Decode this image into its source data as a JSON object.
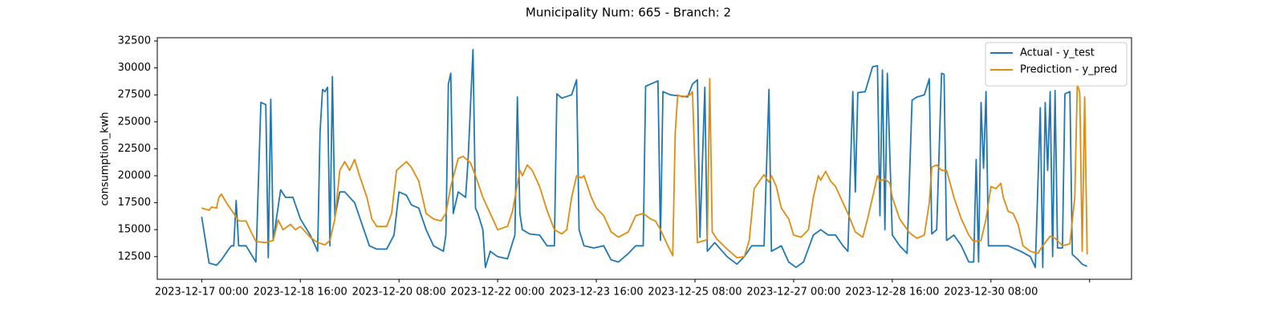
{
  "chart_data": {
    "type": "line",
    "title": "Municipality Num: 665 - Branch: 2",
    "ylabel": "consumption_kwh",
    "legend": "upper right",
    "grid": false,
    "xlim": [
      "2023-12-16 06:00",
      "2024-01-01 17:00"
    ],
    "xticks": [
      "2023-12-17 00:00",
      "2023-12-18 16:00",
      "2023-12-20 08:00",
      "2023-12-22 00:00",
      "2023-12-23 16:00",
      "2023-12-25 08:00",
      "2023-12-27 00:00",
      "2023-12-28 16:00",
      "2023-12-30 08:00",
      {
        "value": "2024-01-01 00:00",
        "label": null
      }
    ],
    "ylim": [
      10400,
      32800
    ],
    "yticks": [
      12500,
      15000,
      17500,
      20000,
      22500,
      25000,
      27500,
      30000,
      32500
    ],
    "series": [
      {
        "name": "Actual - y_test",
        "color": "#1f77b4",
        "x": [
          "2023-12-17 00:00",
          "2023-12-17 03:00",
          "2023-12-17 06:00",
          "2023-12-17 08:00",
          "2023-12-17 11:00",
          "2023-12-17 12:00",
          "2023-12-17 13:00",
          "2023-12-17 14:00",
          "2023-12-17 15:00",
          "2023-12-17 18:00",
          "2023-12-17 22:00",
          "2023-12-18 00:00",
          "2023-12-18 02:00",
          "2023-12-18 03:00",
          "2023-12-18 04:00",
          "2023-12-18 05:00",
          "2023-12-18 08:00",
          "2023-12-18 10:00",
          "2023-12-18 13:00",
          "2023-12-18 16:00",
          "2023-12-18 20:00",
          "2023-12-18 23:00",
          "2023-12-19 00:00",
          "2023-12-19 01:00",
          "2023-12-19 02:00",
          "2023-12-19 03:00",
          "2023-12-19 04:00",
          "2023-12-19 05:00",
          "2023-12-19 06:00",
          "2023-12-19 08:00",
          "2023-12-19 10:00",
          "2023-12-19 14:00",
          "2023-12-19 17:00",
          "2023-12-19 20:00",
          "2023-12-19 23:00",
          "2023-12-20 03:00",
          "2023-12-20 06:00",
          "2023-12-20 08:00",
          "2023-12-20 11:00",
          "2023-12-20 13:00",
          "2023-12-20 16:00",
          "2023-12-20 19:00",
          "2023-12-20 22:00",
          "2023-12-21 02:00",
          "2023-12-21 03:00",
          "2023-12-21 04:00",
          "2023-12-21 05:00",
          "2023-12-21 06:00",
          "2023-12-21 08:00",
          "2023-12-21 11:00",
          "2023-12-21 12:00",
          "2023-12-21 14:00",
          "2023-12-21 15:00",
          "2023-12-21 16:00",
          "2023-12-21 18:00",
          "2023-12-21 19:00",
          "2023-12-21 21:00",
          "2023-12-22 00:00",
          "2023-12-22 04:00",
          "2023-12-22 07:00",
          "2023-12-22 08:00",
          "2023-12-22 09:00",
          "2023-12-22 10:00",
          "2023-12-22 13:00",
          "2023-12-22 17:00",
          "2023-12-22 20:00",
          "2023-12-22 23:00",
          "2023-12-23 00:00",
          "2023-12-23 02:00",
          "2023-12-23 06:00",
          "2023-12-23 08:00",
          "2023-12-23 09:00",
          "2023-12-23 11:00",
          "2023-12-23 15:00",
          "2023-12-23 19:00",
          "2023-12-23 22:00",
          "2023-12-24 01:00",
          "2023-12-24 05:00",
          "2023-12-24 08:00",
          "2023-12-24 11:00",
          "2023-12-24 12:00",
          "2023-12-24 14:00",
          "2023-12-24 17:00",
          "2023-12-24 18:00",
          "2023-12-24 19:00",
          "2023-12-24 22:00",
          "2023-12-25 02:00",
          "2023-12-25 05:00",
          "2023-12-25 07:00",
          "2023-12-25 09:00",
          "2023-12-25 10:00",
          "2023-12-25 12:00",
          "2023-12-25 13:00",
          "2023-12-25 16:00",
          "2023-12-25 21:00",
          "2023-12-26 01:00",
          "2023-12-26 04:00",
          "2023-12-26 07:00",
          "2023-12-26 12:00",
          "2023-12-26 14:00",
          "2023-12-26 15:00",
          "2023-12-26 19:00",
          "2023-12-26 22:00",
          "2023-12-27 01:00",
          "2023-12-27 04:00",
          "2023-12-27 08:00",
          "2023-12-27 11:00",
          "2023-12-27 14:00",
          "2023-12-27 17:00",
          "2023-12-27 20:00",
          "2023-12-27 22:00",
          "2023-12-28 00:00",
          "2023-12-28 01:00",
          "2023-12-28 02:00",
          "2023-12-28 05:00",
          "2023-12-28 08:00",
          "2023-12-28 10:00",
          "2023-12-28 11:00",
          "2023-12-28 12:00",
          "2023-12-28 13:00",
          "2023-12-28 14:00",
          "2023-12-28 16:00",
          "2023-12-28 19:00",
          "2023-12-28 22:00",
          "2023-12-29 00:00",
          "2023-12-29 02:00",
          "2023-12-29 05:00",
          "2023-12-29 07:00",
          "2023-12-29 08:00",
          "2023-12-29 10:00",
          "2023-12-29 12:00",
          "2023-12-29 13:00",
          "2023-12-29 14:00",
          "2023-12-29 17:00",
          "2023-12-29 20:00",
          "2023-12-29 23:00",
          "2023-12-30 01:00",
          "2023-12-30 02:00",
          "2023-12-30 03:00",
          "2023-12-30 04:00",
          "2023-12-30 05:00",
          "2023-12-30 06:00",
          "2023-12-30 07:00",
          "2023-12-30 12:00",
          "2023-12-30 15:00",
          "2023-12-30 20:00",
          "2023-12-31 00:00",
          "2023-12-31 02:00",
          "2023-12-31 04:00",
          "2023-12-31 05:00",
          "2023-12-31 06:00",
          "2023-12-31 07:00",
          "2023-12-31 08:00",
          "2023-12-31 09:00",
          "2023-12-31 10:00",
          "2023-12-31 11:00",
          "2023-12-31 13:00",
          "2023-12-31 14:00",
          "2023-12-31 16:00",
          "2023-12-31 17:00",
          "2023-12-31 19:00",
          "2023-12-31 21:00",
          "2023-12-31 23:00"
        ],
        "values": [
          16200,
          11900,
          11700,
          12200,
          13200,
          13500,
          13500,
          17700,
          13500,
          13500,
          12000,
          26800,
          26600,
          12400,
          27100,
          14000,
          18700,
          18000,
          18000,
          16000,
          14500,
          13000,
          24000,
          28000,
          27800,
          28200,
          13500,
          29200,
          16200,
          18500,
          18500,
          17500,
          15500,
          13500,
          13200,
          13200,
          14500,
          18500,
          18200,
          17300,
          17000,
          15000,
          13500,
          13000,
          14500,
          28500,
          29500,
          16500,
          18500,
          18000,
          21500,
          31700,
          17000,
          16500,
          15000,
          11500,
          13000,
          12500,
          12300,
          14500,
          27300,
          16500,
          15000,
          14600,
          14500,
          13500,
          13500,
          27600,
          27200,
          27500,
          28900,
          15000,
          13500,
          13300,
          13500,
          12200,
          12000,
          12800,
          13500,
          13500,
          28300,
          28500,
          28800,
          14000,
          27800,
          27500,
          27400,
          27300,
          28500,
          28900,
          14300,
          28200,
          13000,
          13800,
          12500,
          11800,
          12500,
          13500,
          13500,
          28000,
          13000,
          13500,
          12000,
          11500,
          12000,
          14500,
          15000,
          14500,
          14500,
          13500,
          13000,
          27800,
          18500,
          27700,
          27800,
          30100,
          30200,
          16300,
          29800,
          15000,
          29500,
          14500,
          13500,
          12800,
          27000,
          27300,
          27500,
          29000,
          14600,
          15000,
          29500,
          29400,
          14000,
          14500,
          13500,
          12000,
          12000,
          21500,
          12000,
          26800,
          20700,
          27800,
          13500,
          13500,
          13500,
          13000,
          12500,
          11500,
          26300,
          11500,
          26800,
          20500,
          27800,
          12500,
          27900,
          13300,
          13300,
          27600,
          27800,
          12700,
          12300,
          11800,
          11600
        ]
      },
      {
        "name": "Prediction - y_pred",
        "color": "#e08c10",
        "x": [
          "2023-12-17 00:00",
          "2023-12-17 03:00",
          "2023-12-17 04:00",
          "2023-12-17 06:00",
          "2023-12-17 07:00",
          "2023-12-17 08:00",
          "2023-12-17 10:00",
          "2023-12-17 13:00",
          "2023-12-17 15:00",
          "2023-12-17 18:00",
          "2023-12-17 20:00",
          "2023-12-17 22:00",
          "2023-12-18 02:00",
          "2023-12-18 05:00",
          "2023-12-18 07:00",
          "2023-12-18 09:00",
          "2023-12-18 12:00",
          "2023-12-18 14:00",
          "2023-12-18 16:00",
          "2023-12-18 20:00",
          "2023-12-18 23:00",
          "2023-12-19 02:00",
          "2023-12-19 04:00",
          "2023-12-19 06:00",
          "2023-12-19 08:00",
          "2023-12-19 10:00",
          "2023-12-19 12:00",
          "2023-12-19 14:00",
          "2023-12-19 16:00",
          "2023-12-19 19:00",
          "2023-12-19 21:00",
          "2023-12-19 23:00",
          "2023-12-20 03:00",
          "2023-12-20 05:00",
          "2023-12-20 07:00",
          "2023-12-20 11:00",
          "2023-12-20 13:00",
          "2023-12-20 16:00",
          "2023-12-20 19:00",
          "2023-12-20 22:00",
          "2023-12-21 01:00",
          "2023-12-21 03:00",
          "2023-12-21 05:00",
          "2023-12-21 08:00",
          "2023-12-21 10:00",
          "2023-12-21 13:00",
          "2023-12-21 15:00",
          "2023-12-21 18:00",
          "2023-12-21 21:00",
          "2023-12-22 00:00",
          "2023-12-22 04:00",
          "2023-12-22 06:00",
          "2023-12-22 09:00",
          "2023-12-22 10:00",
          "2023-12-22 12:00",
          "2023-12-22 14:00",
          "2023-12-22 17:00",
          "2023-12-22 20:00",
          "2023-12-22 23:00",
          "2023-12-23 02:00",
          "2023-12-23 04:00",
          "2023-12-23 06:00",
          "2023-12-23 08:00",
          "2023-12-23 10:00",
          "2023-12-23 11:00",
          "2023-12-23 14:00",
          "2023-12-23 16:00",
          "2023-12-23 19:00",
          "2023-12-23 22:00",
          "2023-12-24 01:00",
          "2023-12-24 05:00",
          "2023-12-24 08:00",
          "2023-12-24 11:00",
          "2023-12-24 14:00",
          "2023-12-24 16:00",
          "2023-12-24 18:00",
          "2023-12-24 21:00",
          "2023-12-24 23:00",
          "2023-12-25 00:00",
          "2023-12-25 01:00",
          "2023-12-25 03:00",
          "2023-12-25 06:00",
          "2023-12-25 07:00",
          "2023-12-25 09:00",
          "2023-12-25 12:00",
          "2023-12-25 13:00",
          "2023-12-25 14:00",
          "2023-12-25 15:00",
          "2023-12-25 17:00",
          "2023-12-25 21:00",
          "2023-12-26 01:00",
          "2023-12-26 04:00",
          "2023-12-26 06:00",
          "2023-12-26 08:00",
          "2023-12-26 11:00",
          "2023-12-26 12:00",
          "2023-12-26 14:00",
          "2023-12-26 15:00",
          "2023-12-26 17:00",
          "2023-12-26 19:00",
          "2023-12-26 22:00",
          "2023-12-27 00:00",
          "2023-12-27 03:00",
          "2023-12-27 06:00",
          "2023-12-27 08:00",
          "2023-12-27 10:00",
          "2023-12-27 11:00",
          "2023-12-27 13:00",
          "2023-12-27 15:00",
          "2023-12-27 17:00",
          "2023-12-27 20:00",
          "2023-12-27 22:00",
          "2023-12-28 01:00",
          "2023-12-28 04:00",
          "2023-12-28 06:00",
          "2023-12-28 08:00",
          "2023-12-28 10:00",
          "2023-12-28 11:00",
          "2023-12-28 13:00",
          "2023-12-28 15:00",
          "2023-12-28 16:00",
          "2023-12-28 19:00",
          "2023-12-28 23:00",
          "2023-12-29 02:00",
          "2023-12-29 05:00",
          "2023-12-29 07:00",
          "2023-12-29 08:00",
          "2023-12-29 10:00",
          "2023-12-29 12:00",
          "2023-12-29 14:00",
          "2023-12-29 17:00",
          "2023-12-29 20:00",
          "2023-12-29 23:00",
          "2023-12-30 01:00",
          "2023-12-30 04:00",
          "2023-12-30 06:00",
          "2023-12-30 08:00",
          "2023-12-30 10:00",
          "2023-12-30 12:00",
          "2023-12-30 13:00",
          "2023-12-30 15:00",
          "2023-12-30 17:00",
          "2023-12-30 19:00",
          "2023-12-30 21:00",
          "2023-12-31 00:00",
          "2023-12-31 03:00",
          "2023-12-31 05:00",
          "2023-12-31 08:00",
          "2023-12-31 10:00",
          "2023-12-31 13:00",
          "2023-12-31 16:00",
          "2023-12-31 18:00",
          "2023-12-31 19:00",
          "2023-12-31 20:00",
          "2023-12-31 21:00",
          "2023-12-31 22:00",
          "2023-12-31 23:00"
        ],
        "values": [
          17000,
          16800,
          17100,
          17000,
          18000,
          18300,
          17500,
          16500,
          15800,
          15800,
          14800,
          13900,
          13800,
          14000,
          15900,
          15000,
          15500,
          15000,
          15300,
          14300,
          13800,
          13600,
          14000,
          16000,
          20500,
          21300,
          20500,
          21500,
          20000,
          18000,
          16000,
          15300,
          15300,
          16500,
          20500,
          21300,
          20800,
          19500,
          16500,
          16000,
          15800,
          16500,
          19000,
          21600,
          21800,
          21200,
          20000,
          18000,
          16500,
          15000,
          15300,
          16700,
          20500,
          20000,
          21000,
          20500,
          19000,
          16800,
          15000,
          14600,
          15000,
          18000,
          20000,
          19800,
          20000,
          18000,
          17000,
          16300,
          14800,
          14300,
          14800,
          16300,
          16500,
          16000,
          15800,
          15000,
          13500,
          12600,
          24000,
          27500,
          27300,
          27500,
          27800,
          13800,
          14000,
          14100,
          29000,
          14800,
          14100,
          13200,
          12400,
          12500,
          14000,
          18800,
          19800,
          20100,
          19400,
          20000,
          19000,
          17000,
          16000,
          14500,
          14300,
          15000,
          18000,
          20000,
          19600,
          20400,
          19500,
          19000,
          17500,
          16500,
          14800,
          14300,
          16000,
          18000,
          20000,
          19500,
          19700,
          19300,
          18000,
          16000,
          14700,
          14200,
          14500,
          17500,
          20800,
          21000,
          20500,
          20500,
          18000,
          16000,
          14500,
          13900,
          14000,
          16000,
          19000,
          18800,
          19300,
          18000,
          16700,
          16500,
          15500,
          13500,
          13000,
          12800,
          13500,
          14400,
          14200,
          13500,
          13700,
          18000,
          28500,
          27700,
          13000,
          27300,
          12700
        ]
      }
    ]
  }
}
